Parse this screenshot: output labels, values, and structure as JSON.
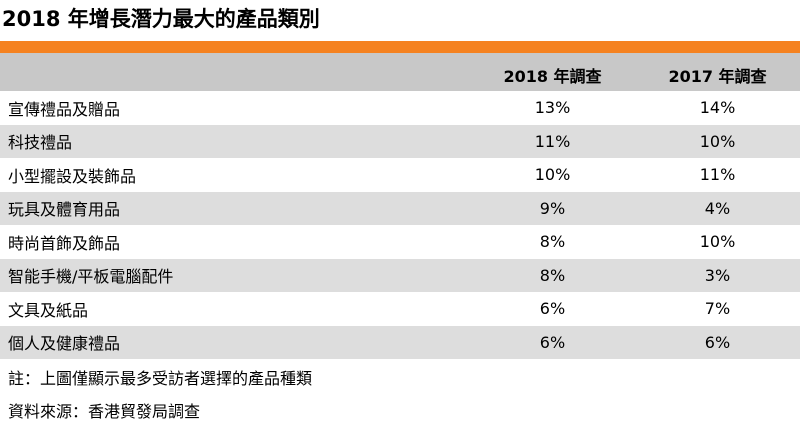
{
  "title": "2018 年增長潛力最大的產品類別",
  "table": {
    "headers": [
      "",
      "2018 年調查",
      "2017 年調查"
    ],
    "rows": [
      {
        "category": "宣傳禮品及贈品",
        "y2018": "13%",
        "y2017": "14%"
      },
      {
        "category": "科技禮品",
        "y2018": "11%",
        "y2017": "10%"
      },
      {
        "category": "小型擺設及裝飾品",
        "y2018": "10%",
        "y2017": "11%"
      },
      {
        "category": "玩具及體育用品",
        "y2018": "9%",
        "y2017": "4%"
      },
      {
        "category": "時尚首飾及飾品",
        "y2018": "8%",
        "y2017": "10%"
      },
      {
        "category": "智能手機/平板電腦配件",
        "y2018": "8%",
        "y2017": "3%"
      },
      {
        "category": "文具及紙品",
        "y2018": "6%",
        "y2017": "7%"
      },
      {
        "category": "個人及健康禮品",
        "y2018": "6%",
        "y2017": "6%"
      }
    ]
  },
  "notes": {
    "note": "註：上圖僅顯示最多受訪者選擇的產品種類",
    "source": "資料來源：香港貿發局調查"
  },
  "colors": {
    "accent_bar": "#f58220",
    "header_bg": "#c8c8c8",
    "stripe_bg": "#dddddd"
  }
}
